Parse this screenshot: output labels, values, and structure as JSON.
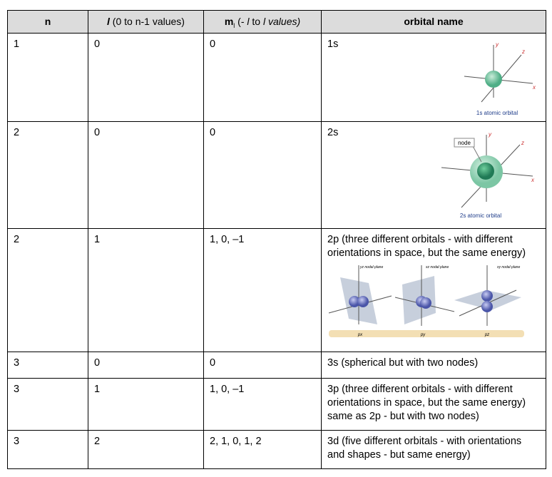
{
  "table": {
    "header": [
      [
        "n"
      ],
      [
        "l",
        " (0 to n-1 values)"
      ],
      [
        "m",
        "l",
        " (- ",
        "l",
        " to ",
        "l",
        " values)"
      ],
      [
        "orbital name"
      ]
    ],
    "rows": [
      [
        "1",
        "0",
        "0",
        "1s"
      ],
      [
        "2",
        "0",
        "0",
        "2s"
      ],
      [
        "2",
        "1",
        "1, 0, –1",
        "2p (three different orbitals - with different orientations in space, but the same energy)"
      ],
      [
        "3",
        "0",
        "0",
        "3s (spherical but with two nodes)"
      ],
      [
        "3",
        "1",
        "1, 0, –1",
        "3p (three different orbitals - with different orientations in space, but the same energy) same as 2p - but with two nodes)"
      ],
      [
        "3",
        "2",
        "2, 1, 0, 1, 2",
        "3d (five different orbitals - with orientations and shapes - but same energy)"
      ]
    ]
  },
  "figures": [
    {
      "axes": [
        "y",
        "z",
        "x"
      ],
      "caption": "1s atomic orbital"
    },
    {
      "axes": [
        "y",
        "z",
        "x"
      ],
      "node": "node",
      "caption": "2s atomic orbital"
    },
    {
      "planes": [
        "yz nodal plane",
        "xz nodal plane",
        "xy nodal plane"
      ],
      "names": [
        "px",
        "py",
        "pz"
      ]
    }
  ]
}
